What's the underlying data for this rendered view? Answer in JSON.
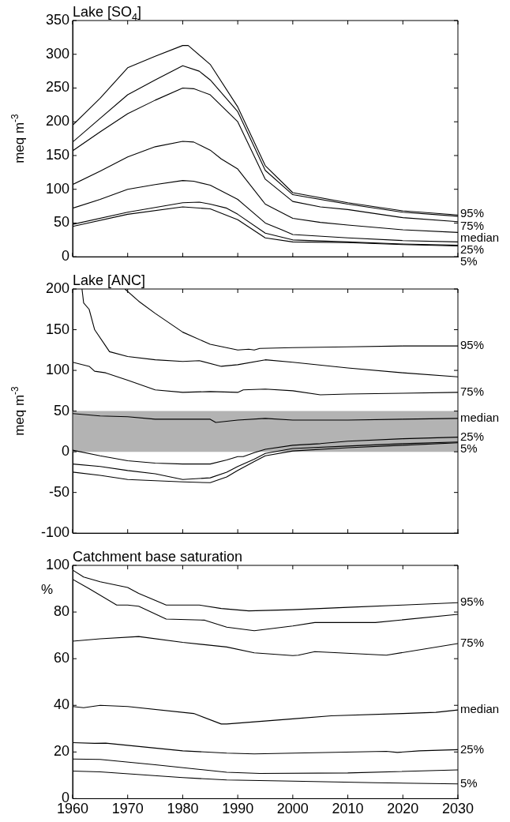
{
  "chart_data": [
    {
      "type": "line",
      "title": "Lake [SO$_{4}$]",
      "ylabel": "meq m$^{-3}$",
      "xlim": [
        1960,
        2030
      ],
      "xticks": [
        1960,
        1970,
        1980,
        1990,
        2000,
        2010,
        2020,
        2030
      ],
      "ylim": [
        0,
        350
      ],
      "yticks": [
        0,
        50,
        100,
        150,
        200,
        250,
        300,
        350
      ],
      "tick_labels": "y",
      "grid": false,
      "legend": "right",
      "series": [
        {
          "name": "95%",
          "color": "#000000",
          "x": [
            1960,
            1965,
            1970,
            1975,
            1980,
            1981,
            1985,
            1990,
            1995,
            2000,
            2010,
            2020,
            2030
          ],
          "values": [
            195,
            235,
            280,
            297,
            313,
            313,
            285,
            222,
            135,
            95,
            80,
            68,
            62
          ]
        },
        {
          "color": "#000000",
          "x": [
            1960,
            1965,
            1970,
            1975,
            1980,
            1983,
            1985,
            1990,
            1995,
            2000,
            2010,
            2020,
            2030
          ],
          "values": [
            170,
            205,
            240,
            262,
            283,
            275,
            262,
            215,
            128,
            92,
            78,
            66,
            60
          ]
        },
        {
          "name": "75%",
          "color": "#000000",
          "x": [
            1960,
            1965,
            1970,
            1975,
            1980,
            1982,
            1985,
            1990,
            1995,
            2000,
            2005,
            2010,
            2020,
            2030
          ],
          "values": [
            157,
            185,
            212,
            232,
            250,
            249,
            240,
            200,
            115,
            82,
            74,
            70,
            58,
            52
          ]
        },
        {
          "name": "median",
          "color": "#000000",
          "x": [
            1960,
            1965,
            1970,
            1975,
            1980,
            1982,
            1985,
            1987,
            1990,
            1995,
            2000,
            2005,
            2010,
            2020,
            2030
          ],
          "values": [
            107,
            127,
            148,
            163,
            171,
            170,
            158,
            145,
            130,
            78,
            57,
            51,
            47,
            40,
            36
          ]
        },
        {
          "name": "25%",
          "color": "#000000",
          "x": [
            1960,
            1965,
            1970,
            1975,
            1980,
            1982,
            1985,
            1990,
            1995,
            1998,
            2000,
            2010,
            2020,
            2030
          ],
          "values": [
            72,
            85,
            100,
            107,
            113,
            112,
            106,
            85,
            50,
            40,
            33,
            28,
            24,
            22
          ]
        },
        {
          "color": "#000000",
          "x": [
            1960,
            1970,
            1980,
            1983,
            1985,
            1988,
            1990,
            1995,
            2000,
            2010,
            2020,
            2030
          ],
          "values": [
            48,
            66,
            80,
            81,
            78,
            72,
            63,
            35,
            25,
            22,
            19,
            17
          ]
        },
        {
          "name": "5%",
          "color": "#000000",
          "x": [
            1960,
            1970,
            1980,
            1985,
            1990,
            1995,
            2000,
            2010,
            2020,
            2030
          ],
          "values": [
            45,
            63,
            74,
            71,
            55,
            28,
            22,
            21,
            18,
            16
          ]
        }
      ]
    },
    {
      "type": "line",
      "title": "Lake [ANC]",
      "ylabel": "meq m$^{-3}$",
      "xlim": [
        1960,
        2030
      ],
      "xticks": [
        1960,
        1970,
        1980,
        1990,
        2000,
        2010,
        2020,
        2030
      ],
      "ylim": [
        -100,
        200
      ],
      "yticks": [
        -100,
        -50,
        0,
        50,
        100,
        150,
        200
      ],
      "tick_labels": "y",
      "grid": false,
      "legend": "right",
      "bands": [
        {
          "axis": "y",
          "from": 0,
          "to": 50,
          "color": "#b3b3b3"
        }
      ],
      "series": [
        {
          "name": "95%",
          "color": "#000000",
          "x": [
            1969.5,
            1972,
            1975,
            1980,
            1985,
            1990,
            1992,
            1993,
            1994,
            2000,
            2010,
            2020,
            2030
          ],
          "values": [
            200,
            185,
            170,
            147,
            132,
            125,
            126,
            125,
            127,
            128,
            129,
            130,
            130
          ]
        },
        {
          "color": "#000000",
          "x": [
            1961.7,
            1962,
            1963,
            1964,
            1966,
            1966.7,
            1970,
            1975,
            1980,
            1983,
            1987,
            1990,
            1995,
            2000,
            2010,
            2020,
            2030
          ],
          "values": [
            200,
            183,
            175,
            150,
            130,
            123,
            117,
            113,
            111,
            112,
            105,
            107,
            113,
            110,
            103,
            97,
            92
          ]
        },
        {
          "name": "75%",
          "color": "#000000",
          "x": [
            1960,
            1963,
            1964,
            1966,
            1970,
            1975,
            1980,
            1985,
            1990,
            1991,
            1995,
            2000,
            2005,
            2010,
            2020,
            2030
          ],
          "values": [
            110,
            105,
            99,
            97,
            88,
            76,
            73,
            74,
            73,
            76,
            77,
            75,
            70,
            71,
            72,
            73
          ]
        },
        {
          "name": "median",
          "color": "#000000",
          "x": [
            1960,
            1965,
            1970,
            1975,
            1985,
            1986,
            1990,
            1995,
            2000,
            2010,
            2020,
            2030
          ],
          "values": [
            47,
            44,
            43,
            40,
            40,
            36,
            39,
            41,
            39,
            39,
            40,
            41
          ]
        },
        {
          "name": "25%",
          "color": "#000000",
          "x": [
            1960,
            1965,
            1970,
            1975,
            1980,
            1985,
            1988,
            1990,
            1991,
            1993,
            1995,
            2000,
            2005,
            2010,
            2020,
            2030
          ],
          "values": [
            2,
            -5,
            -11,
            -14,
            -15,
            -15,
            -10,
            -6,
            -6,
            -1,
            3,
            8,
            10,
            13,
            16,
            18
          ]
        },
        {
          "color": "#000000",
          "x": [
            1960,
            1965,
            1970,
            1975,
            1980,
            1985,
            1988,
            1990,
            1993,
            1995,
            2000,
            2010,
            2020,
            2030
          ],
          "values": [
            -15,
            -18,
            -23,
            -27,
            -34,
            -32,
            -25,
            -18,
            -9,
            -2,
            4,
            7,
            10,
            12
          ]
        },
        {
          "name": "5%",
          "color": "#000000",
          "x": [
            1960,
            1965,
            1970,
            1980,
            1985,
            1988,
            1990,
            1993,
            1995,
            2000,
            2010,
            2020,
            2030
          ],
          "values": [
            -25,
            -29,
            -34,
            -37,
            -38,
            -31,
            -23,
            -12,
            -5,
            1,
            5,
            8,
            11
          ]
        }
      ]
    },
    {
      "type": "line",
      "title": "Catchment base saturation",
      "ylabel": "%",
      "xlim": [
        1960,
        2030
      ],
      "xticks": [
        1960,
        1970,
        1980,
        1990,
        2000,
        2010,
        2020,
        2030
      ],
      "ylim": [
        0,
        100
      ],
      "yticks": [
        0,
        20,
        40,
        60,
        80,
        100
      ],
      "grid": false,
      "legend": "right",
      "series": [
        {
          "name": "95%",
          "color": "#000000",
          "x": [
            1960,
            1962,
            1965,
            1970,
            1972,
            1977,
            1983,
            1987,
            1992,
            2000,
            2010,
            2020,
            2030
          ],
          "values": [
            98,
            95,
            93,
            90.5,
            88,
            83,
            83,
            81.5,
            80.5,
            81,
            82,
            83,
            84
          ]
        },
        {
          "color": "#000000",
          "x": [
            1960,
            1963,
            1968,
            1970,
            1972,
            1977,
            1984,
            1988,
            1993,
            2000,
            2004,
            2015,
            2030
          ],
          "values": [
            94,
            90,
            83,
            83,
            82.5,
            77,
            76.5,
            73.5,
            72,
            74,
            75.5,
            75.5,
            79
          ]
        },
        {
          "name": "75%",
          "color": "#000000",
          "x": [
            1960,
            1965,
            1972,
            1980,
            1988,
            1993,
            2000,
            2001,
            2004,
            2017,
            2030
          ],
          "values": [
            67.5,
            68.5,
            69.5,
            67,
            65,
            62.5,
            61.3,
            61.5,
            63,
            61.5,
            66.5
          ]
        },
        {
          "name": "median",
          "color": "#000000",
          "x": [
            1960,
            1962,
            1965,
            1970,
            1982,
            1987,
            1988,
            2000,
            2007,
            2020,
            2026,
            2030
          ],
          "values": [
            39.5,
            39,
            40,
            39.5,
            36.5,
            32,
            32,
            34.2,
            35.5,
            36.5,
            37,
            38
          ]
        },
        {
          "name": "25%",
          "color": "#000000",
          "x": [
            1960,
            1964,
            1966,
            1980,
            1988,
            1993,
            2017,
            2019,
            2023,
            2030
          ],
          "values": [
            24,
            23.7,
            23.8,
            20.5,
            19.5,
            19.2,
            20.3,
            19.8,
            20.5,
            21
          ]
        },
        {
          "color": "#000000",
          "x": [
            1960,
            1965,
            1975,
            1988,
            1994,
            2010,
            2030
          ],
          "values": [
            17,
            16.8,
            14.5,
            11.3,
            10.8,
            11,
            12.3
          ]
        },
        {
          "name": "5%",
          "color": "#000000",
          "x": [
            1960,
            1965,
            1980,
            1988,
            2000,
            2015,
            2030
          ],
          "values": [
            11.8,
            11.5,
            9,
            8,
            7.5,
            6.8,
            6.3
          ]
        }
      ]
    }
  ]
}
